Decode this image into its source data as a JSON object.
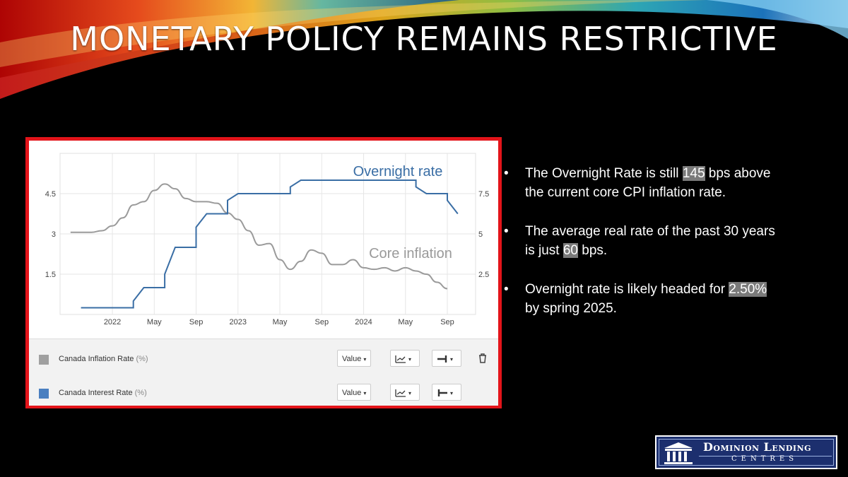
{
  "slide": {
    "title": "MONETARY POLICY REMAINS RESTRICTIVE"
  },
  "bullets": [
    {
      "marker": "•",
      "pre": " The Overnight Rate is still ",
      "hl": "145",
      "post": " bps above the current core CPI inflation rate."
    },
    {
      "marker": "•",
      "pre": "The average real rate of the past 30 years is just ",
      "hl": "60",
      "post": " bps."
    },
    {
      "marker": "•",
      "pre": "Overnight rate is likely headed for ",
      "hl": "2.50%",
      "post": "  by spring 2025."
    }
  ],
  "logo": {
    "line1": "Dominion Lending",
    "line2": "CENTRES"
  },
  "controls": {
    "rows": [
      {
        "label": "Canada Inflation Rate",
        "unit": "(%)",
        "color": "#a0a0a0",
        "mode": "Value",
        "caret": "▾",
        "has_trash": true
      },
      {
        "label": "Canada Interest Rate",
        "unit": "(%)",
        "color": "#4a7fc0",
        "mode": "Value",
        "caret": "▾",
        "has_trash": false
      }
    ]
  },
  "chart_data": {
    "type": "line",
    "x_ticks": [
      "2022",
      "May",
      "Sep",
      "2023",
      "May",
      "Sep",
      "2024",
      "May",
      "Sep"
    ],
    "x_tick_positions": [
      "2022-01",
      "2022-05",
      "2022-09",
      "2023-01",
      "2023-05",
      "2023-09",
      "2024-01",
      "2024-05",
      "2024-09"
    ],
    "left_axis": {
      "ticks": [
        "4.5",
        "3",
        "1.5"
      ],
      "values": [
        4.5,
        3,
        1.5
      ],
      "range": [
        0,
        6.0
      ]
    },
    "right_axis": {
      "ticks": [
        "7.5",
        "5",
        "2.5"
      ],
      "values": [
        7.5,
        5,
        2.5
      ],
      "range": [
        0,
        10
      ]
    },
    "annotations": [
      {
        "text": "Overnight rate",
        "series": "interest",
        "color": "#3a6ea5"
      },
      {
        "text": "Core inflation",
        "series": "inflation",
        "color": "#9a9a9a"
      }
    ],
    "grid": true,
    "series": [
      {
        "name": "Canada Inflation Rate",
        "key": "inflation",
        "axis": "right",
        "color": "#9a9a9a",
        "points": [
          [
            "2021-09",
            5.1
          ],
          [
            "2021-11",
            5.1
          ],
          [
            "2021-12",
            5.2
          ],
          [
            "2022-01",
            5.5
          ],
          [
            "2022-02",
            6.0
          ],
          [
            "2022-03",
            6.8
          ],
          [
            "2022-04",
            7.0
          ],
          [
            "2022-05",
            7.7
          ],
          [
            "2022-06",
            8.1
          ],
          [
            "2022-07",
            7.8
          ],
          [
            "2022-08",
            7.2
          ],
          [
            "2022-09",
            7.0
          ],
          [
            "2022-10",
            7.0
          ],
          [
            "2022-11",
            6.9
          ],
          [
            "2022-12",
            6.3
          ],
          [
            "2023-01",
            5.9
          ],
          [
            "2023-02",
            5.2
          ],
          [
            "2023-03",
            4.3
          ],
          [
            "2023-04",
            4.4
          ],
          [
            "2023-05",
            3.4
          ],
          [
            "2023-06",
            2.8
          ],
          [
            "2023-07",
            3.3
          ],
          [
            "2023-08",
            4.0
          ],
          [
            "2023-09",
            3.8
          ],
          [
            "2023-10",
            3.1
          ],
          [
            "2023-11",
            3.1
          ],
          [
            "2023-12",
            3.4
          ],
          [
            "2024-01",
            2.9
          ],
          [
            "2024-02",
            2.8
          ],
          [
            "2024-03",
            2.9
          ],
          [
            "2024-04",
            2.7
          ],
          [
            "2024-05",
            2.9
          ],
          [
            "2024-06",
            2.7
          ],
          [
            "2024-07",
            2.5
          ],
          [
            "2024-08",
            2.0
          ],
          [
            "2024-09",
            1.6
          ]
        ]
      },
      {
        "name": "Canada Interest Rate",
        "key": "interest",
        "axis": "left",
        "color": "#3a6ea5",
        "points": [
          [
            "2021-10",
            0.25
          ],
          [
            "2022-03",
            0.25
          ],
          [
            "2022-03",
            0.5
          ],
          [
            "2022-04",
            1.0
          ],
          [
            "2022-06",
            1.0
          ],
          [
            "2022-06",
            1.5
          ],
          [
            "2022-07",
            2.5
          ],
          [
            "2022-09",
            2.5
          ],
          [
            "2022-09",
            3.25
          ],
          [
            "2022-10",
            3.75
          ],
          [
            "2022-12",
            3.75
          ],
          [
            "2022-12",
            4.25
          ],
          [
            "2023-01",
            4.5
          ],
          [
            "2023-06",
            4.5
          ],
          [
            "2023-06",
            4.75
          ],
          [
            "2023-07",
            5.0
          ],
          [
            "2024-06",
            5.0
          ],
          [
            "2024-06",
            4.75
          ],
          [
            "2024-07",
            4.5
          ],
          [
            "2024-09",
            4.5
          ],
          [
            "2024-09",
            4.25
          ],
          [
            "2024-10",
            3.75
          ]
        ]
      }
    ]
  }
}
